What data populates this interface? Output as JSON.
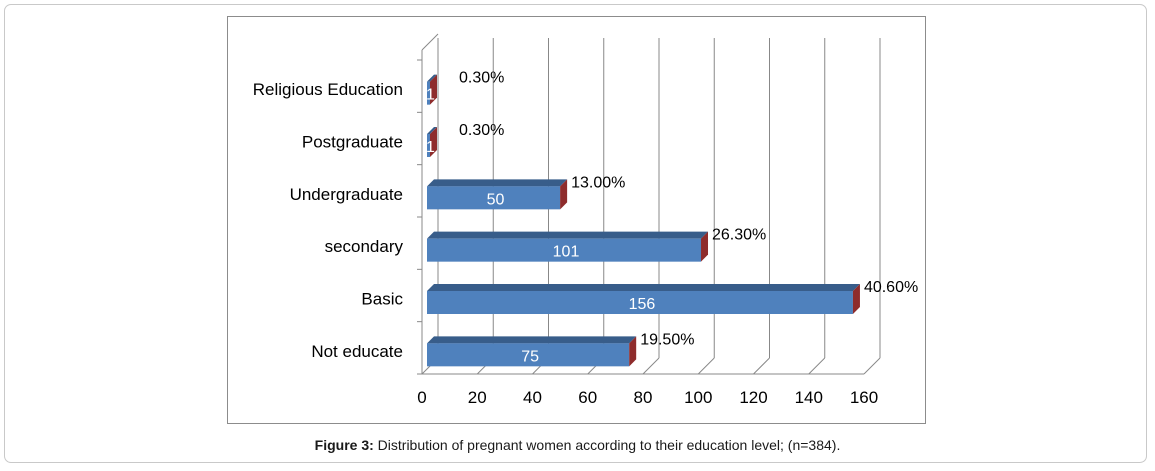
{
  "caption": {
    "label": "Figure 3:",
    "text": " Distribution of pregnant women according to their education level; (n=384)."
  },
  "colors": {
    "bar_front": "#4f81bd",
    "bar_top": "#385d8a",
    "bar_end": "#8e2c2c",
    "grid": "#888888"
  },
  "chart_data": {
    "type": "bar",
    "orientation": "horizontal",
    "style": "3d-clustered",
    "categories": [
      "Not educate",
      "Basic",
      "secondary",
      "Undergraduate",
      "Postgraduate",
      "Religious Education"
    ],
    "values": [
      75,
      156,
      101,
      50,
      1,
      1
    ],
    "percent_labels": [
      "19.50%",
      "40.60%",
      "26.30%",
      "13.00%",
      "0.30%",
      "0.30%"
    ],
    "xlim": [
      0,
      160
    ],
    "xticks": [
      0,
      20,
      40,
      60,
      80,
      100,
      120,
      140,
      160
    ],
    "grid": true,
    "legend": "none",
    "title": "",
    "xlabel": "",
    "ylabel": ""
  }
}
